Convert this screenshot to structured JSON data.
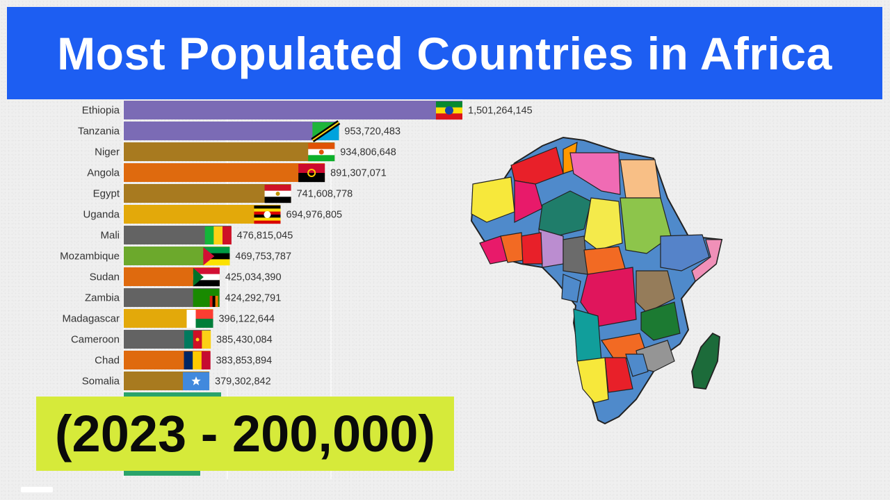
{
  "title": "Most Populated Countries in Africa",
  "period_label": "(2023 - 200,000)",
  "chart_data": {
    "type": "bar",
    "orientation": "horizontal",
    "categories": [
      "Ethiopia",
      "Tanzania",
      "Niger",
      "Angola",
      "Egypt",
      "Uganda",
      "Mali",
      "Mozambique",
      "Sudan",
      "Zambia",
      "Madagascar",
      "Cameroon",
      "Chad",
      "Somalia"
    ],
    "values": [
      1501264145,
      953720483,
      934806648,
      891307071,
      741608778,
      694976805,
      476815045,
      469753787,
      425034390,
      424292791,
      396122644,
      385430084,
      383853894,
      379302842
    ],
    "value_labels": [
      "1,501,264,145",
      "953,720,483",
      "934,806,648",
      "891,307,071",
      "741,608,778",
      "694,976,805",
      "476,815,045",
      "469,753,787",
      "425,034,390",
      "424,292,791",
      "396,122,644",
      "385,430,084",
      "383,853,894",
      "379,302,842"
    ],
    "bar_colors": [
      "#7b6bb5",
      "#7b6bb5",
      "#a87a1f",
      "#df6a0e",
      "#a87a1f",
      "#e3a90a",
      "#636363",
      "#6ca92c",
      "#df6a0e",
      "#636363",
      "#e3a90a",
      "#636363",
      "#df6a0e",
      "#a87a1f"
    ],
    "xlim": [
      0,
      1501264145
    ],
    "grid": true,
    "legend": "none"
  },
  "flags": [
    "ethiopia-flag-icon",
    "tanzania-flag-icon",
    "niger-flag-icon",
    "angola-flag-icon",
    "egypt-flag-icon",
    "uganda-flag-icon",
    "mali-flag-icon",
    "mozambique-flag-icon",
    "sudan-flag-icon",
    "zambia-flag-icon",
    "madagascar-flag-icon",
    "cameroon-flag-icon",
    "chad-flag-icon",
    "somalia-flag-icon"
  ],
  "map_icon": "africa-map-icon",
  "colors": {
    "banner": "#1d5ef2",
    "year_box": "#d6ea3a"
  }
}
